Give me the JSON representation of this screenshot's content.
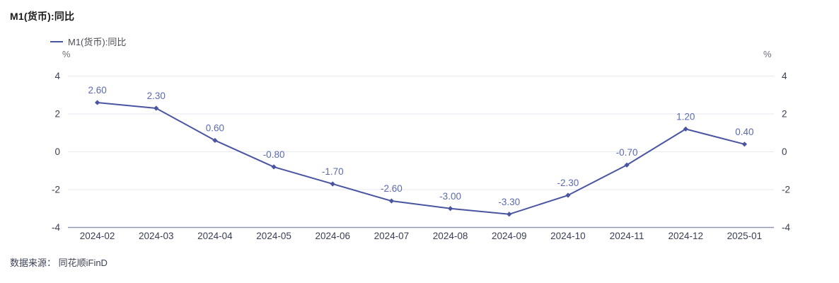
{
  "title": "M1(货币):同比",
  "legend": {
    "label": "M1(货币):同比"
  },
  "axes": {
    "left_unit": "%",
    "right_unit": "%"
  },
  "footer": {
    "source": "数据来源： 同花顺iFinD"
  },
  "chart_data": {
    "type": "line",
    "title": "M1(货币):同比",
    "categories": [
      "2024-02",
      "2024-03",
      "2024-04",
      "2024-05",
      "2024-06",
      "2024-07",
      "2024-08",
      "2024-09",
      "2024-10",
      "2024-11",
      "2024-12",
      "2025-01"
    ],
    "series": [
      {
        "name": "M1(货币):同比",
        "values": [
          2.6,
          2.3,
          0.6,
          -0.8,
          -1.7,
          -2.6,
          -3.0,
          -3.3,
          -2.3,
          -0.7,
          1.2,
          0.4
        ],
        "labels": [
          "2.60",
          "2.30",
          "0.60",
          "-0.80",
          "-1.70",
          "-2.60",
          "-3.00",
          "-3.30",
          "-2.30",
          "-0.70",
          "1.20",
          "0.40"
        ]
      }
    ],
    "ylim": [
      -4,
      4
    ],
    "yticks": [
      4,
      2,
      0,
      -2,
      -4
    ],
    "ylabel": "%",
    "grid": true,
    "legend_position": "top-left",
    "colors": {
      "line": "#4a55a2",
      "marker": "#4a55a2",
      "data_label": "#5b6ab1",
      "axis_text": "#3a3f55",
      "grid_line": "#e9e9f1",
      "axis_line": "#9098ab"
    }
  }
}
